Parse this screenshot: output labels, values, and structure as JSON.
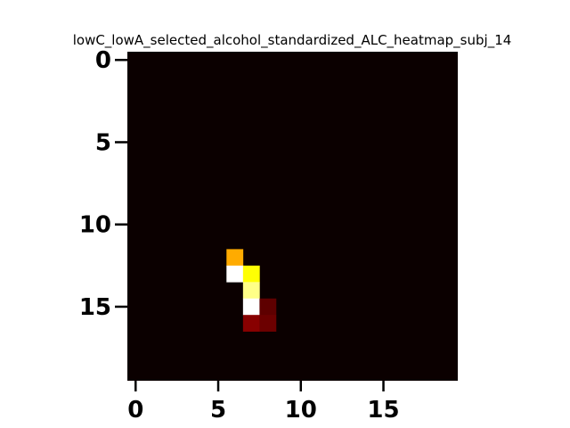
{
  "chart_data": {
    "type": "heatmap",
    "title": "lowC_lowA_selected_alcohol_standardized_ALC_heatmap_subj_14",
    "xlabel": "",
    "ylabel": "",
    "n_rows": 20,
    "n_cols": 20,
    "colormap": "hot",
    "vmin": 0,
    "vmax": 1,
    "background_value": 0.0,
    "x_ticks": [
      0,
      5,
      10,
      15
    ],
    "y_ticks": [
      0,
      5,
      10,
      15
    ],
    "cells": [
      {
        "row": 12,
        "col": 6,
        "value": 0.62
      },
      {
        "row": 13,
        "col": 6,
        "value": 1.0
      },
      {
        "row": 13,
        "col": 7,
        "value": 0.75
      },
      {
        "row": 14,
        "col": 7,
        "value": 0.88
      },
      {
        "row": 15,
        "col": 7,
        "value": 1.0
      },
      {
        "row": 15,
        "col": 8,
        "value": 0.12
      },
      {
        "row": 16,
        "col": 7,
        "value": 0.18
      },
      {
        "row": 16,
        "col": 8,
        "value": 0.14
      }
    ],
    "grid": false,
    "legend": false
  }
}
